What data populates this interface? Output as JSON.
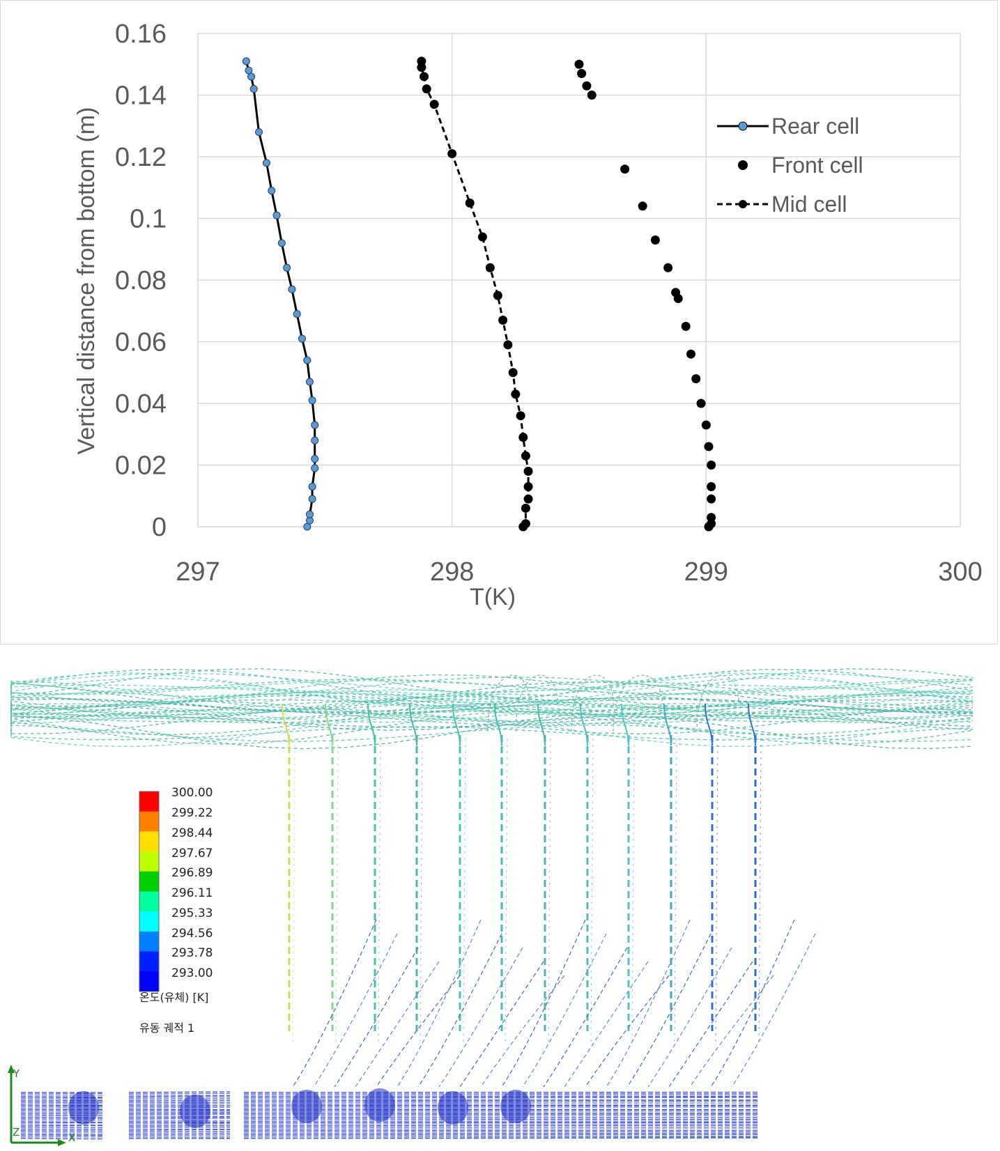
{
  "chart_data": {
    "type": "scatter",
    "title": "",
    "xlabel": "T(K)",
    "ylabel": "Vertical distance from bottom (m)",
    "xlim": [
      297,
      300
    ],
    "ylim": [
      0,
      0.16
    ],
    "x_ticks": [
      "297",
      "298",
      "299",
      "300"
    ],
    "y_ticks": [
      "0",
      "0.02",
      "0.04",
      "0.06",
      "0.08",
      "0.1",
      "0.12",
      "0.14",
      "0.16"
    ],
    "grid": true,
    "legend_position": "top-right",
    "series": [
      {
        "name": "Rear cell",
        "style": "solid-line-with-markers",
        "marker_color": "#5b9bd5",
        "line_color": "#000000",
        "points": [
          [
            297.43,
            0.0
          ],
          [
            297.44,
            0.002
          ],
          [
            297.44,
            0.004
          ],
          [
            297.45,
            0.009
          ],
          [
            297.45,
            0.013
          ],
          [
            297.46,
            0.019
          ],
          [
            297.46,
            0.022
          ],
          [
            297.46,
            0.028
          ],
          [
            297.46,
            0.033
          ],
          [
            297.45,
            0.041
          ],
          [
            297.44,
            0.047
          ],
          [
            297.43,
            0.054
          ],
          [
            297.41,
            0.061
          ],
          [
            297.39,
            0.069
          ],
          [
            297.37,
            0.077
          ],
          [
            297.35,
            0.084
          ],
          [
            297.33,
            0.092
          ],
          [
            297.31,
            0.101
          ],
          [
            297.29,
            0.109
          ],
          [
            297.27,
            0.118
          ],
          [
            297.24,
            0.128
          ],
          [
            297.22,
            0.142
          ],
          [
            297.21,
            0.146
          ],
          [
            297.2,
            0.148
          ],
          [
            297.19,
            0.151
          ]
        ]
      },
      {
        "name": "Front cell",
        "style": "markers-only",
        "marker_color": "#000000",
        "points": [
          [
            299.01,
            0.0
          ],
          [
            299.02,
            0.001
          ],
          [
            299.02,
            0.003
          ],
          [
            299.02,
            0.009
          ],
          [
            299.02,
            0.013
          ],
          [
            299.02,
            0.02
          ],
          [
            299.01,
            0.026
          ],
          [
            299.0,
            0.033
          ],
          [
            298.98,
            0.04
          ],
          [
            298.96,
            0.048
          ],
          [
            298.94,
            0.056
          ],
          [
            298.92,
            0.065
          ],
          [
            298.89,
            0.074
          ],
          [
            298.88,
            0.076
          ],
          [
            298.85,
            0.084
          ],
          [
            298.8,
            0.093
          ],
          [
            298.75,
            0.104
          ],
          [
            298.68,
            0.116
          ],
          [
            298.55,
            0.14
          ],
          [
            298.53,
            0.143
          ],
          [
            298.51,
            0.147
          ],
          [
            298.5,
            0.15
          ]
        ]
      },
      {
        "name": "Mid cell",
        "style": "dashed-line-with-markers",
        "marker_color": "#000000",
        "line_color": "#000000",
        "points": [
          [
            298.28,
            0.0
          ],
          [
            298.29,
            0.001
          ],
          [
            298.29,
            0.006
          ],
          [
            298.3,
            0.009
          ],
          [
            298.3,
            0.013
          ],
          [
            298.3,
            0.018
          ],
          [
            298.29,
            0.023
          ],
          [
            298.28,
            0.029
          ],
          [
            298.27,
            0.036
          ],
          [
            298.25,
            0.043
          ],
          [
            298.24,
            0.05
          ],
          [
            298.22,
            0.059
          ],
          [
            298.2,
            0.067
          ],
          [
            298.18,
            0.075
          ],
          [
            298.15,
            0.084
          ],
          [
            298.12,
            0.094
          ],
          [
            298.07,
            0.105
          ],
          [
            298.0,
            0.121
          ],
          [
            297.93,
            0.137
          ],
          [
            297.9,
            0.142
          ],
          [
            297.89,
            0.146
          ],
          [
            297.88,
            0.149
          ],
          [
            297.88,
            0.151
          ]
        ]
      }
    ]
  },
  "simulation": {
    "colorbar": {
      "values": [
        "300.00",
        "299.22",
        "298.44",
        "297.67",
        "296.89",
        "296.11",
        "295.33",
        "294.56",
        "293.78",
        "293.00"
      ],
      "colors": [
        "#ff0000",
        "#ff7f00",
        "#ffdf00",
        "#bfff00",
        "#00d000",
        "#00ffa0",
        "#00ffff",
        "#0080ff",
        "#0020ff",
        "#0000ff"
      ],
      "quantity_label": "온도(유체) [K]",
      "trajectory_label": "유동 궤적 1"
    },
    "axis_triad": {
      "y": "Y",
      "x": "X",
      "z": "Z"
    },
    "streamline_colors": [
      "#d4e04a",
      "#7fd88a",
      "#46c4a4",
      "#44b8a6",
      "#45c6b0",
      "#3fbbb0",
      "#49b7b0",
      "#48c0b8",
      "#4cc6c6",
      "#3ca8d0",
      "#2e6fd6"
    ]
  }
}
